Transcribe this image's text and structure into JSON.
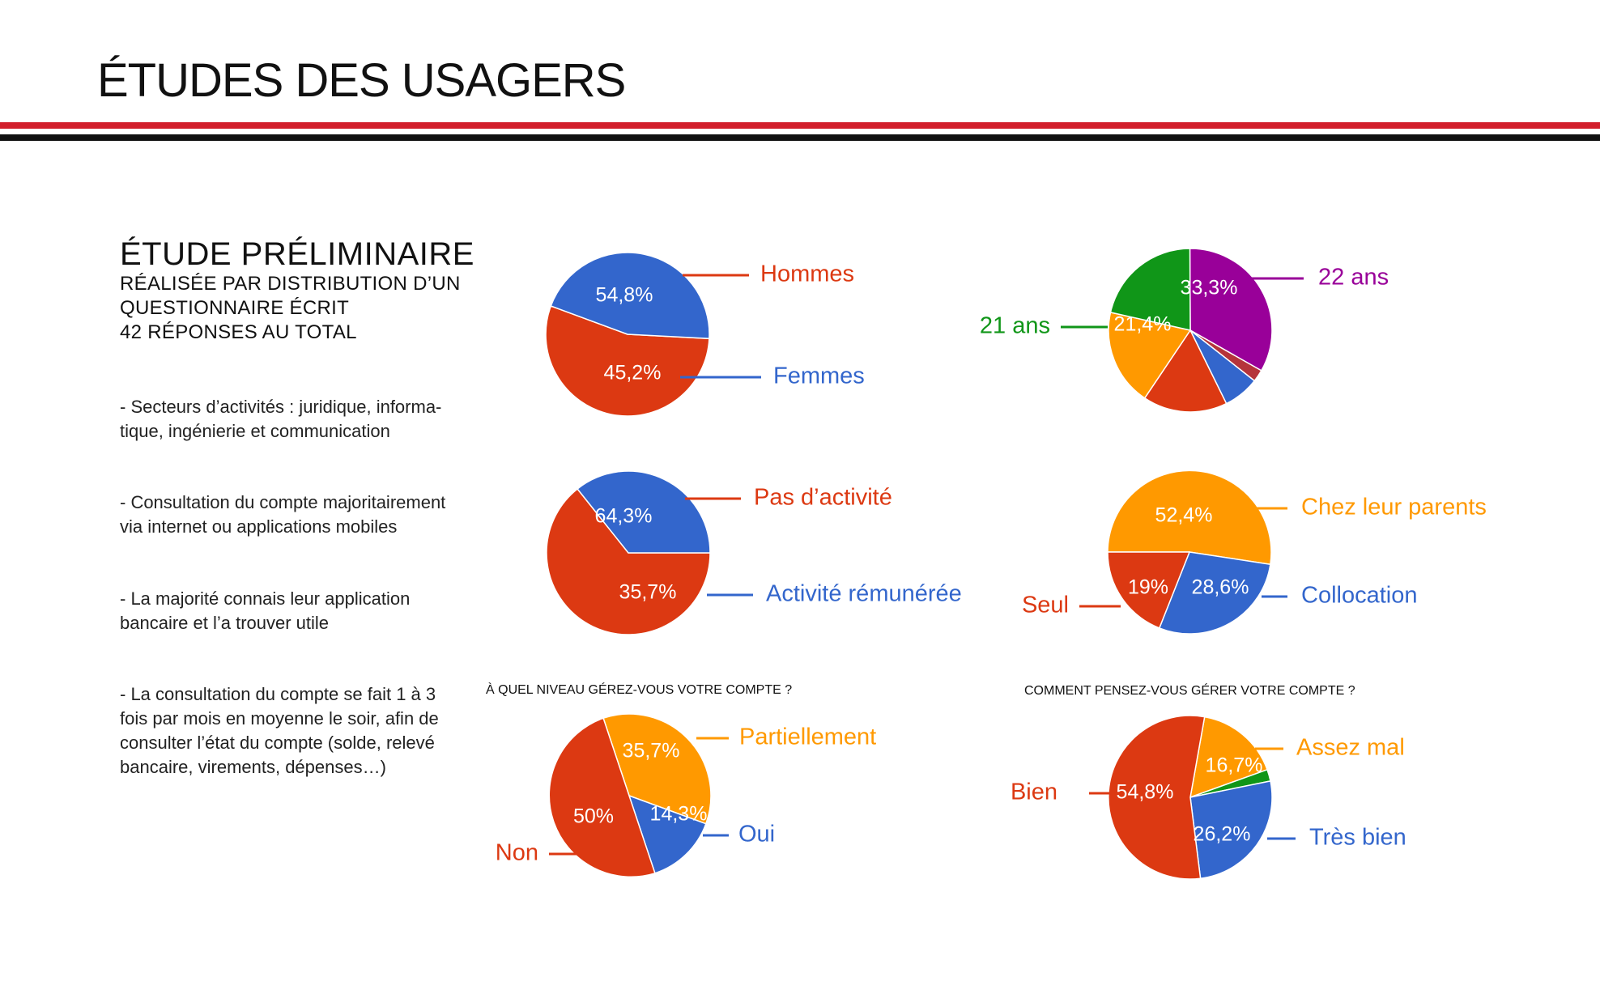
{
  "page": {
    "title": "ÉTUDES DES USAGERS",
    "intro": {
      "heading": "ÉTUDE  PRÉLIMINAIRE",
      "lines": [
        "RÉALISÉE PAR DISTRIBUTION D’UN",
        "QUESTIONNAIRE ÉCRIT",
        "42 RÉPONSES AU TOTAL"
      ]
    },
    "notes": [
      "- Secteurs d’activités : juridique, informa-tique, ingénierie et communication",
      "- Consultation du compte majoritairement via internet ou applications mobiles",
      "- La majorité connais leur application bancaire et l’a trouver utile",
      "- La consultation du compte se fait 1 à 3 fois par mois en moyenne le soir, afin de consulter l’état du compte (solde, relevé bancaire, virements, dépenses…)"
    ]
  },
  "colors": {
    "red": "#dc3912",
    "blue": "#3366cc",
    "orange": "#ff9900",
    "green": "#109618",
    "purple": "#990099",
    "darkred": "#b5343a",
    "rule_red": "#d21f2b",
    "rule_black": "#111111"
  },
  "chart_data": [
    {
      "type": "pie",
      "title": "",
      "slices": [
        {
          "label": "Hommes",
          "value": 54.8,
          "pct_label": "54,8%",
          "color": "#dc3912"
        },
        {
          "label": "Femmes",
          "value": 45.2,
          "pct_label": "45,2%",
          "color": "#3366cc"
        }
      ]
    },
    {
      "type": "pie",
      "title": "",
      "slices": [
        {
          "label": "22 ans",
          "value": 33.3,
          "pct_label": "33,3%",
          "color": "#990099"
        },
        {
          "label": "",
          "value": 2.4,
          "pct_label": "",
          "color": "#b5343a"
        },
        {
          "label": "",
          "value": 7.1,
          "pct_label": "",
          "color": "#3366cc"
        },
        {
          "label": "",
          "value": 16.7,
          "pct_label": "",
          "color": "#dc3912"
        },
        {
          "label": "",
          "value": 19.1,
          "pct_label": "",
          "color": "#ff9900"
        },
        {
          "label": "21 ans",
          "value": 21.4,
          "pct_label": "21,4%",
          "color": "#109618"
        }
      ]
    },
    {
      "type": "pie",
      "title": "",
      "slices": [
        {
          "label": "Pas d’activité",
          "value": 64.3,
          "pct_label": "64,3%",
          "color": "#dc3912"
        },
        {
          "label": "Activité rémunérée",
          "value": 35.7,
          "pct_label": "35,7%",
          "color": "#3366cc"
        }
      ]
    },
    {
      "type": "pie",
      "title": "",
      "slices": [
        {
          "label": "Chez leur parents",
          "value": 52.4,
          "pct_label": "52,4%",
          "color": "#ff9900"
        },
        {
          "label": "Collocation",
          "value": 28.6,
          "pct_label": "28,6%",
          "color": "#3366cc"
        },
        {
          "label": "Seul",
          "value": 19,
          "pct_label": "19%",
          "color": "#dc3912"
        }
      ]
    },
    {
      "type": "pie",
      "title": "À QUEL NIVEAU GÉREZ-VOUS VOTRE COMPTE ?",
      "slices": [
        {
          "label": "Partiellement",
          "value": 35.7,
          "pct_label": "35,7%",
          "color": "#ff9900"
        },
        {
          "label": "Oui",
          "value": 14.3,
          "pct_label": "14,3%",
          "color": "#3366cc"
        },
        {
          "label": "Non",
          "value": 50,
          "pct_label": "50%",
          "color": "#dc3912"
        }
      ]
    },
    {
      "type": "pie",
      "title": "COMMENT PENSEZ-VOUS GÉRER VOTRE COMPTE ?",
      "slices": [
        {
          "label": "Assez mal",
          "value": 16.7,
          "pct_label": "16,7%",
          "color": "#ff9900"
        },
        {
          "label": "",
          "value": 2.3,
          "pct_label": "",
          "color": "#109618"
        },
        {
          "label": "Très bien",
          "value": 26.2,
          "pct_label": "26,2%",
          "color": "#3366cc"
        },
        {
          "label": "Bien",
          "value": 54.8,
          "pct_label": "54,8%",
          "color": "#dc3912"
        }
      ]
    }
  ]
}
